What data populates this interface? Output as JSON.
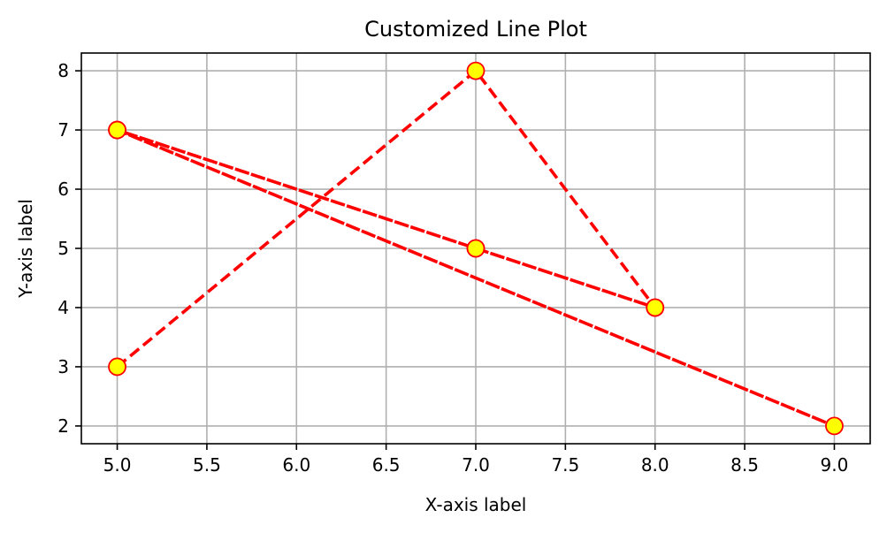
{
  "chart_data": {
    "type": "line",
    "title": "Customized Line Plot",
    "xlabel": "X-axis label",
    "ylabel": "Y-axis label",
    "xlim": [
      4.8,
      9.2
    ],
    "ylim": [
      1.7,
      8.3
    ],
    "x_ticks": [
      5.0,
      5.5,
      6.0,
      6.5,
      7.0,
      7.5,
      8.0,
      8.5,
      9.0
    ],
    "x_tick_labels": [
      "5.0",
      "5.5",
      "6.0",
      "6.5",
      "7.0",
      "7.5",
      "8.0",
      "8.5",
      "9.0"
    ],
    "y_ticks": [
      2,
      3,
      4,
      5,
      6,
      7,
      8
    ],
    "y_tick_labels": [
      "2",
      "3",
      "4",
      "5",
      "6",
      "7",
      "8"
    ],
    "grid": true,
    "series": [
      {
        "x": [
          5,
          7,
          8,
          7,
          5,
          9,
          5,
          7,
          8
        ],
        "values": [
          3,
          8,
          4,
          5,
          7,
          2,
          7,
          5,
          4
        ],
        "line_color": "#ff0000",
        "line_style": "dashed",
        "marker": "circle",
        "marker_face": "#ffff00",
        "marker_edge": "#ff0000"
      }
    ]
  }
}
